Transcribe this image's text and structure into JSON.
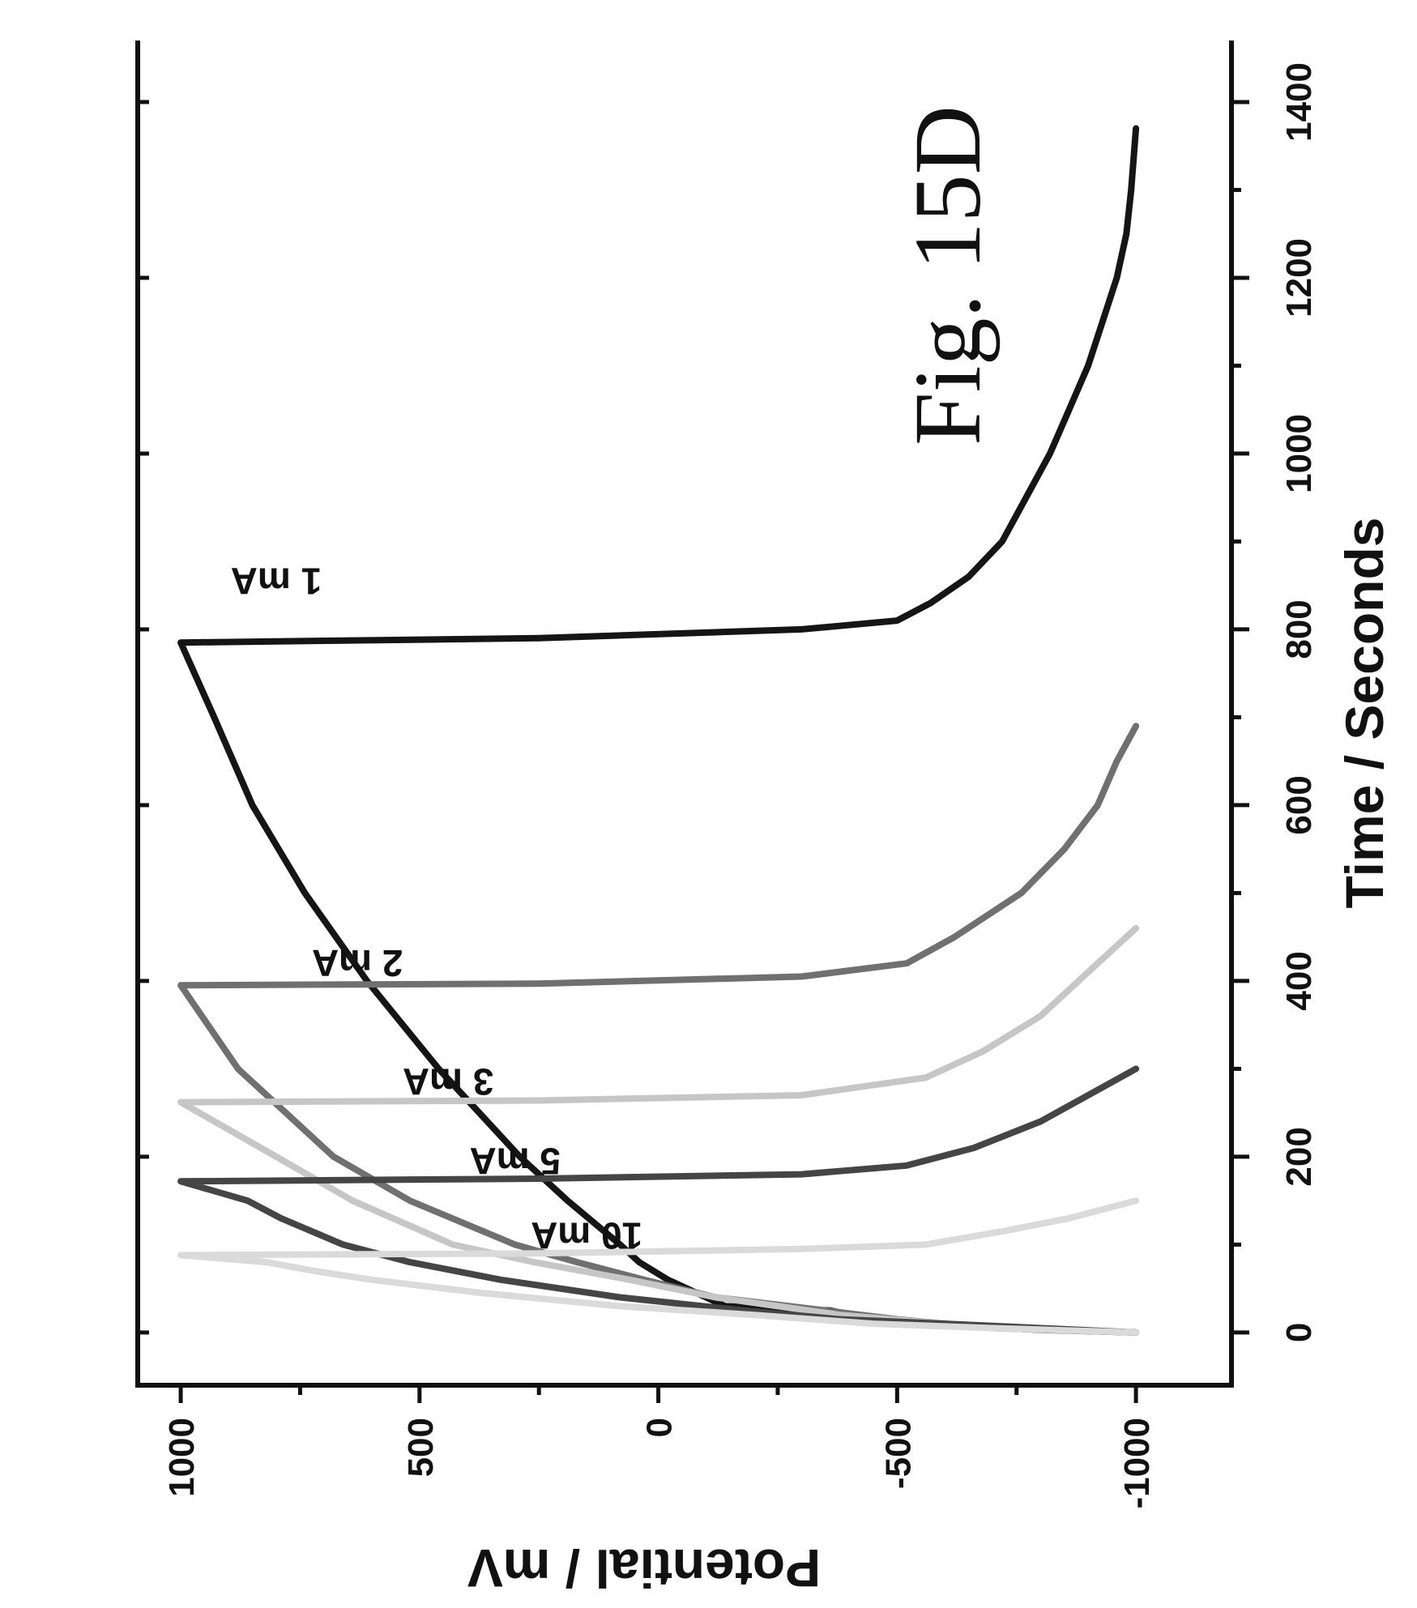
{
  "figure_title": "Fig. 15D",
  "chart_data": {
    "type": "line",
    "xlabel": "Time / Seconds",
    "ylabel": "Potential / mV",
    "xlim": [
      -60,
      1470
    ],
    "ylim": [
      -1200,
      1090
    ],
    "xticks": [
      0,
      200,
      400,
      600,
      800,
      1000,
      1200,
      1400
    ],
    "yticks": [
      1000,
      500,
      0,
      -500,
      -1000
    ],
    "orientation": "rotated 90 degrees counter-clockwise",
    "series": [
      {
        "name": "1 mA",
        "color": "#151515",
        "points": [
          [
            0,
            -1000
          ],
          [
            3,
            -800
          ],
          [
            8,
            -600
          ],
          [
            15,
            -450
          ],
          [
            25,
            -360
          ],
          [
            30,
            -140
          ],
          [
            40,
            -100
          ],
          [
            60,
            -20
          ],
          [
            80,
            40
          ],
          [
            100,
            80
          ],
          [
            150,
            190
          ],
          [
            200,
            290
          ],
          [
            300,
            460
          ],
          [
            400,
            610
          ],
          [
            500,
            740
          ],
          [
            600,
            850
          ],
          [
            700,
            930
          ],
          [
            785,
            1000
          ],
          [
            790,
            250
          ],
          [
            800,
            -300
          ],
          [
            810,
            -500
          ],
          [
            830,
            -570
          ],
          [
            860,
            -650
          ],
          [
            900,
            -720
          ],
          [
            950,
            -770
          ],
          [
            1000,
            -820
          ],
          [
            1050,
            -860
          ],
          [
            1100,
            -900
          ],
          [
            1150,
            -930
          ],
          [
            1200,
            -960
          ],
          [
            1250,
            -980
          ],
          [
            1300,
            -990
          ],
          [
            1370,
            -1000
          ]
        ]
      },
      {
        "name": "2 mA",
        "color": "#707070",
        "points": [
          [
            0,
            -1000
          ],
          [
            5,
            -700
          ],
          [
            15,
            -500
          ],
          [
            25,
            -350
          ],
          [
            40,
            -120
          ],
          [
            60,
            30
          ],
          [
            80,
            170
          ],
          [
            100,
            300
          ],
          [
            150,
            520
          ],
          [
            200,
            680
          ],
          [
            250,
            780
          ],
          [
            300,
            880
          ],
          [
            395,
            1000
          ],
          [
            397,
            250
          ],
          [
            405,
            -300
          ],
          [
            420,
            -520
          ],
          [
            450,
            -620
          ],
          [
            500,
            -760
          ],
          [
            550,
            -850
          ],
          [
            600,
            -920
          ],
          [
            650,
            -960
          ],
          [
            690,
            -1000
          ]
        ]
      },
      {
        "name": "3 mA",
        "color": "#c6c6c6",
        "points": [
          [
            0,
            -1000
          ],
          [
            5,
            -800
          ],
          [
            10,
            -600
          ],
          [
            20,
            -380
          ],
          [
            40,
            -120
          ],
          [
            60,
            60
          ],
          [
            80,
            260
          ],
          [
            100,
            430
          ],
          [
            150,
            640
          ],
          [
            200,
            800
          ],
          [
            262,
            1000
          ],
          [
            264,
            250
          ],
          [
            270,
            -300
          ],
          [
            290,
            -560
          ],
          [
            320,
            -680
          ],
          [
            360,
            -800
          ],
          [
            410,
            -900
          ],
          [
            460,
            -1000
          ]
        ]
      },
      {
        "name": "5 mA",
        "color": "#454545",
        "points": [
          [
            0,
            -1000
          ],
          [
            5,
            -800
          ],
          [
            10,
            -600
          ],
          [
            15,
            -380
          ],
          [
            25,
            -180
          ],
          [
            40,
            80
          ],
          [
            60,
            330
          ],
          [
            80,
            520
          ],
          [
            100,
            660
          ],
          [
            130,
            790
          ],
          [
            150,
            860
          ],
          [
            172,
            1000
          ],
          [
            175,
            250
          ],
          [
            180,
            -300
          ],
          [
            190,
            -520
          ],
          [
            210,
            -660
          ],
          [
            240,
            -800
          ],
          [
            270,
            -900
          ],
          [
            300,
            -1000
          ]
        ]
      },
      {
        "name": "10 mA",
        "color": "#dadada",
        "points": [
          [
            0,
            -1000
          ],
          [
            5,
            -700
          ],
          [
            10,
            -450
          ],
          [
            20,
            -200
          ],
          [
            30,
            80
          ],
          [
            45,
            370
          ],
          [
            60,
            600
          ],
          [
            70,
            720
          ],
          [
            80,
            820
          ],
          [
            88,
            1000
          ],
          [
            90,
            250
          ],
          [
            95,
            -300
          ],
          [
            100,
            -560
          ],
          [
            115,
            -720
          ],
          [
            130,
            -860
          ],
          [
            150,
            -1000
          ]
        ]
      }
    ],
    "annotations": [
      {
        "text": "1 mA",
        "x": 855,
        "y": 800
      },
      {
        "text": "2 mA",
        "x": 420,
        "y": 630
      },
      {
        "text": "3 mA",
        "x": 285,
        "y": 440
      },
      {
        "text": "5 mA",
        "x": 195,
        "y": 300
      },
      {
        "text": "10 mA",
        "x": 110,
        "y": 150
      }
    ]
  }
}
